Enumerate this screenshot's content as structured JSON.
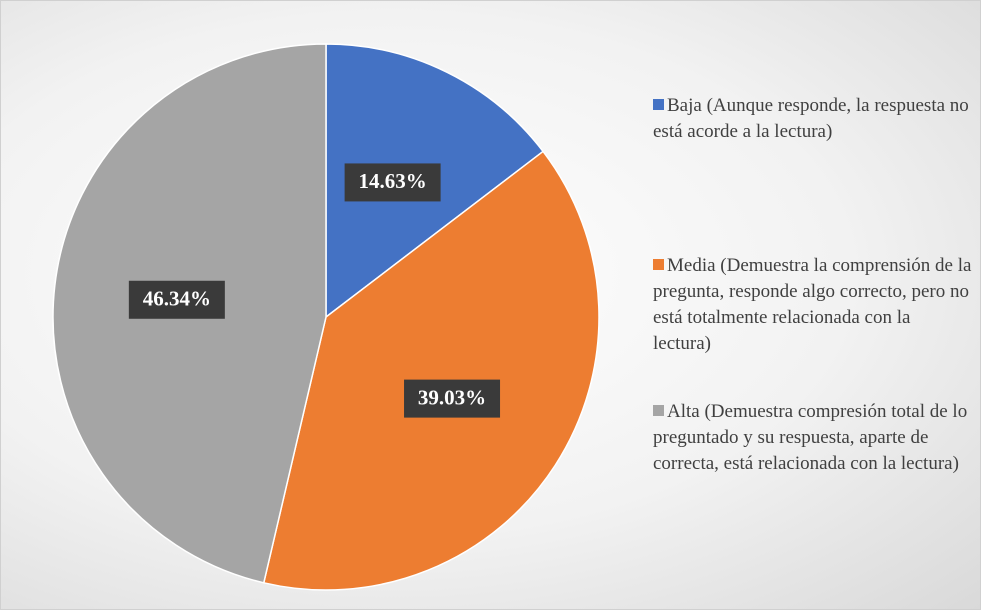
{
  "chart_data": {
    "type": "pie",
    "categories": [
      "Baja (Aunque responde, la respuesta no está acorde a la lectura)",
      "Media (Demuestra la comprensión de la pregunta, responde algo correcto, pero no está totalmente relacionada con la lectura)",
      "Alta (Demuestra compresión total de lo preguntado y su respuesta, aparte de correcta, está relacionada con la lectura)"
    ],
    "values": [
      14.63,
      39.03,
      46.34
    ],
    "value_labels": [
      "14.63%",
      "39.03%",
      "46.34%"
    ],
    "colors": [
      "#4472c4",
      "#ed7d31",
      "#a5a5a5"
    ],
    "legend": "right"
  }
}
